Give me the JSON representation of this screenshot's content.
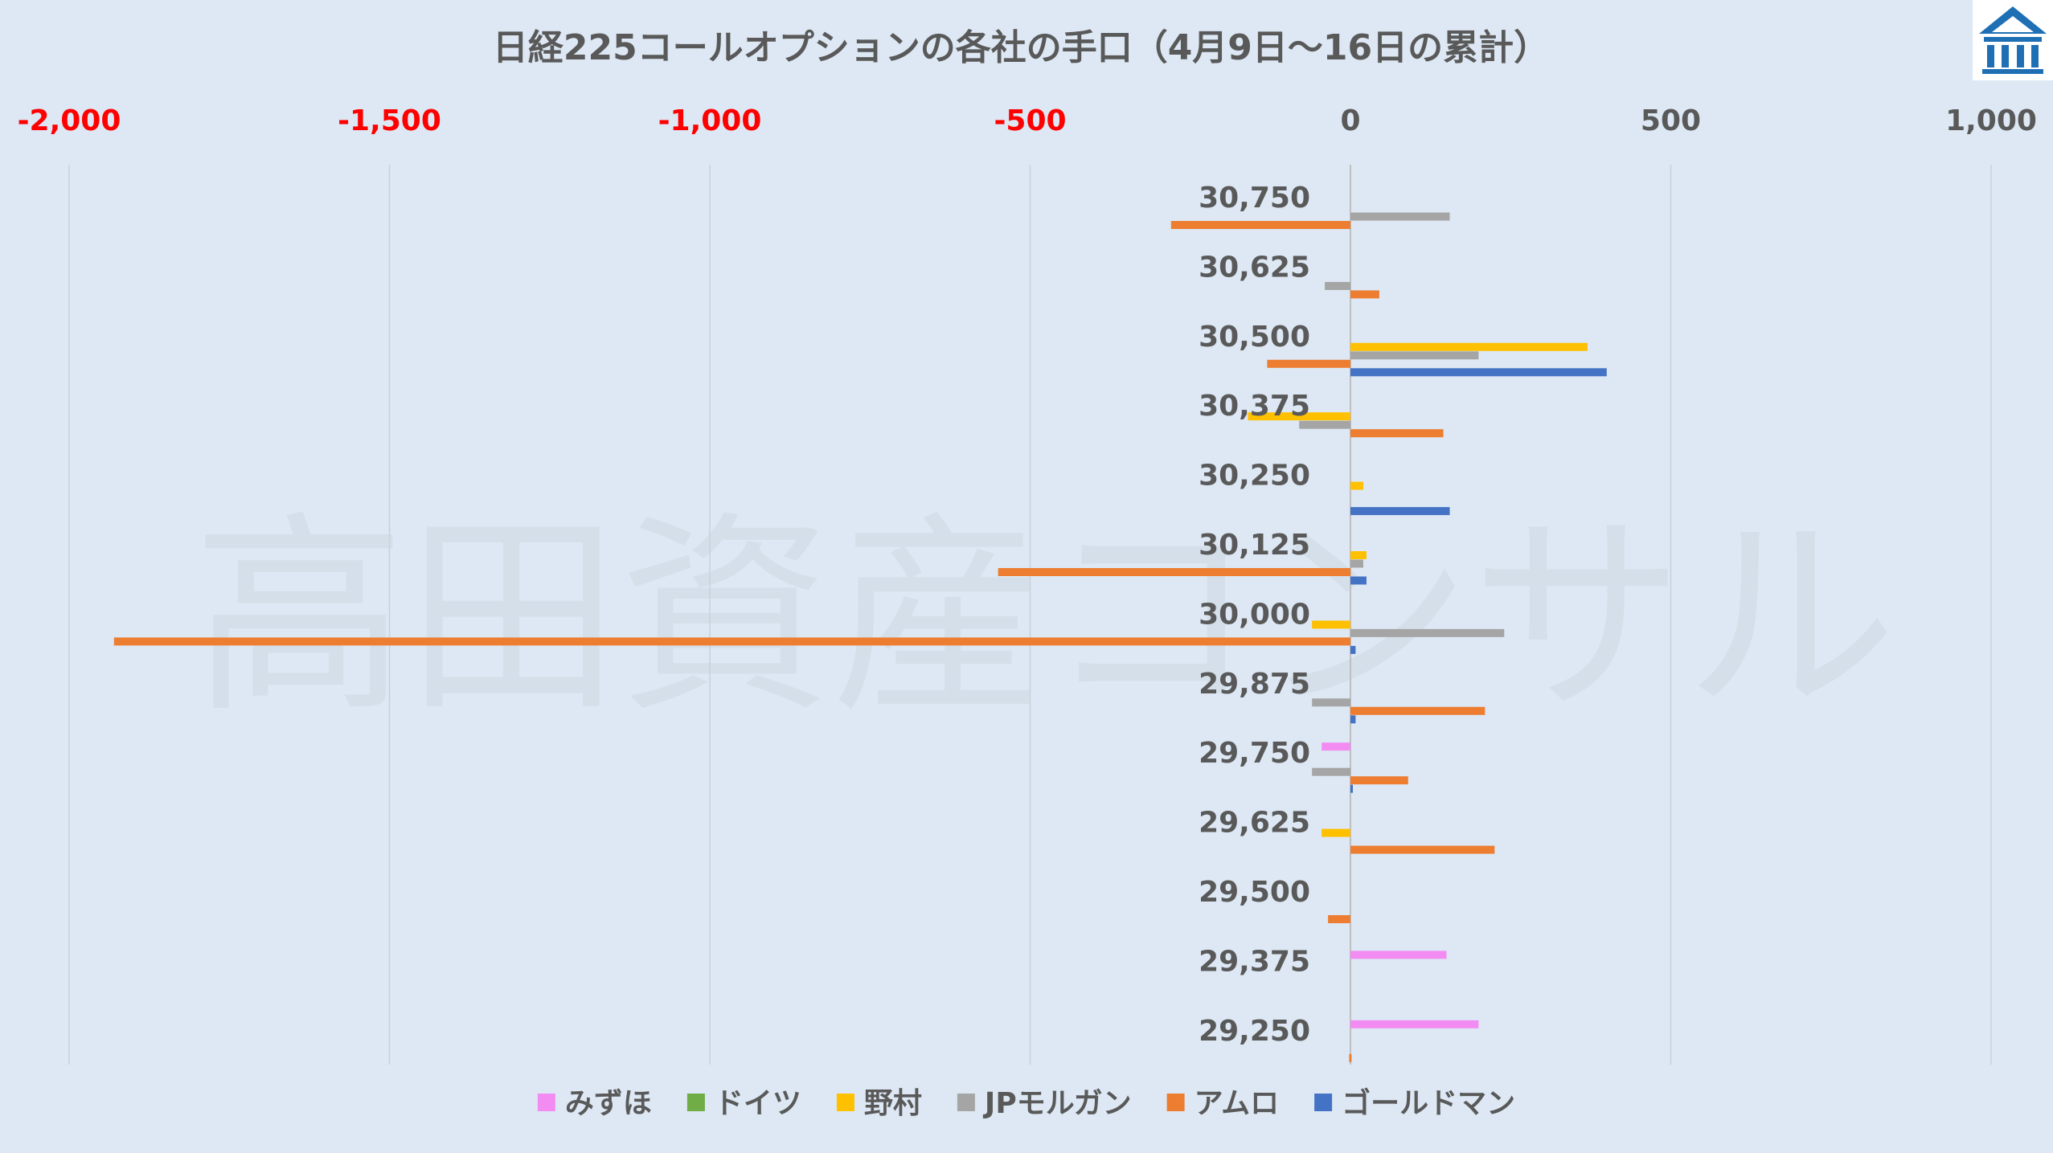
{
  "chart_data": {
    "type": "bar",
    "orientation": "horizontal",
    "title": "日経225コールオプションの各社の手口（4月9日～16日の累計）",
    "xlim": [
      -2000,
      1000
    ],
    "xticks": [
      -2000,
      -1500,
      -1000,
      -500,
      0,
      500,
      1000
    ],
    "xtick_labels": [
      "-2,000",
      "-1,500",
      "-1,000",
      "-500",
      "0",
      "500",
      "1,000"
    ],
    "negative_tick_color": "#ff0000",
    "grid": true,
    "legend_position": "bottom",
    "categories": [
      "30,750",
      "30,625",
      "30,500",
      "30,375",
      "30,250",
      "30,125",
      "30,000",
      "29,875",
      "29,750",
      "29,625",
      "29,500",
      "29,375",
      "29,250"
    ],
    "series": [
      {
        "name": "みずほ",
        "color": "#f28cf2",
        "values": [
          0,
          0,
          0,
          0,
          0,
          0,
          0,
          0,
          -45,
          0,
          0,
          150,
          200
        ]
      },
      {
        "name": "ドイツ",
        "color": "#70ad47",
        "values": [
          0,
          0,
          0,
          0,
          0,
          0,
          0,
          0,
          0,
          0,
          0,
          0,
          0
        ]
      },
      {
        "name": "野村",
        "color": "#ffc000",
        "values": [
          0,
          0,
          370,
          -160,
          20,
          25,
          -60,
          0,
          0,
          -45,
          0,
          0,
          0
        ]
      },
      {
        "name": "JPモルガン",
        "color": "#a5a5a5",
        "values": [
          155,
          -40,
          200,
          -80,
          0,
          20,
          240,
          -60,
          -60,
          0,
          0,
          0,
          0
        ]
      },
      {
        "name": "アムロ",
        "color": "#ed7d31",
        "values": [
          -280,
          45,
          -130,
          145,
          0,
          -550,
          -1930,
          210,
          90,
          225,
          -35,
          0,
          -2
        ]
      },
      {
        "name": "ゴールドマン",
        "color": "#4472c4",
        "values": [
          0,
          0,
          400,
          0,
          155,
          25,
          8,
          8,
          3,
          0,
          0,
          0,
          0
        ]
      }
    ]
  },
  "watermark": "高田資産コンサル",
  "logo": {
    "icon": "building-icon",
    "color": "#1f6fb5"
  }
}
